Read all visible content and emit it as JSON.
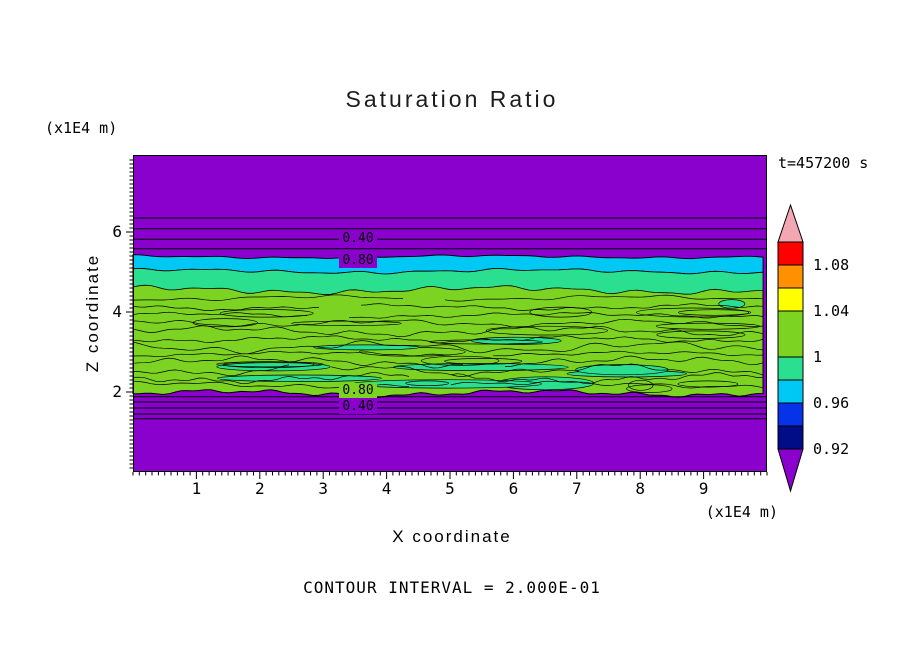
{
  "chart_data": {
    "type": "heatmap",
    "title": "Saturation Ratio",
    "time": "t=457200 s",
    "xlabel": "X coordinate",
    "ylabel": "Z coordinate",
    "x_units": "(x1E4 m)",
    "z_units": "(x1E4 m)",
    "contour_interval_label": "CONTOUR INTERVAL = 2.000E-01",
    "contour_interval": 0.2,
    "xlim": [
      0,
      10
    ],
    "zlim": [
      0,
      7.925
    ],
    "x_ticks": [
      1,
      2,
      3,
      4,
      5,
      6,
      7,
      8,
      9
    ],
    "z_ticks": [
      2,
      4,
      6
    ],
    "colorbar": {
      "min": 0.92,
      "max": 1.1,
      "step": 0.02,
      "tick_values": [
        1.08,
        1.04,
        1.0,
        0.96,
        0.92
      ],
      "tick_labels": [
        "1.08",
        "1.04",
        "1",
        "0.96",
        "0.92"
      ],
      "over_color": "#f2a7b3",
      "under_color": "#8a00cc",
      "segments": [
        {
          "from": 1.08,
          "to": 1.1,
          "color": "#ff0000"
        },
        {
          "from": 1.06,
          "to": 1.08,
          "color": "#ff9000"
        },
        {
          "from": 1.04,
          "to": 1.06,
          "color": "#ffff00"
        },
        {
          "from": 1.0,
          "to": 1.04,
          "color": "#7dd321"
        },
        {
          "from": 0.98,
          "to": 1.0,
          "color": "#2adf8f"
        },
        {
          "from": 0.96,
          "to": 0.98,
          "color": "#00c8f5"
        },
        {
          "from": 0.94,
          "to": 0.96,
          "color": "#0633e8"
        },
        {
          "from": 0.92,
          "to": 0.94,
          "color": "#000d86"
        }
      ]
    },
    "field": {
      "background_color": "#8a00cc",
      "cloud": {
        "z_top": 5.38,
        "z_bottom": 1.97,
        "color": "#7dd321"
      },
      "stripes": [
        {
          "name": "cyan-stripe",
          "z_top": 5.38,
          "z_bottom": 5.02,
          "color": "#00c8f5"
        },
        {
          "name": "spring-band",
          "z_top": 5.02,
          "z_bottom": 4.55,
          "color": "#2adf8f"
        }
      ],
      "patch_color": "#2adf8f",
      "upper_contour_lines_z": [
        6.35,
        6.08,
        5.82,
        5.58
      ],
      "lower_contour_lines_z": [
        1.88,
        1.75,
        1.6,
        1.45,
        1.33
      ],
      "inner_contour_z": [
        4.35,
        4.12,
        3.92,
        3.72,
        3.52,
        3.32,
        3.12,
        2.95,
        2.75,
        2.55,
        2.35,
        2.18
      ],
      "contour_labels": [
        {
          "text": "0.40",
          "x": 3.55,
          "z": 5.82,
          "bg": "#8a00cc"
        },
        {
          "text": "0.80",
          "x": 3.55,
          "z": 5.28,
          "bg": "#8a00cc"
        },
        {
          "text": "0.80",
          "x": 3.55,
          "z": 2.02,
          "bg": "#7dd321"
        },
        {
          "text": "0.40",
          "x": 3.55,
          "z": 1.62,
          "bg": "#8a00cc"
        }
      ]
    }
  }
}
